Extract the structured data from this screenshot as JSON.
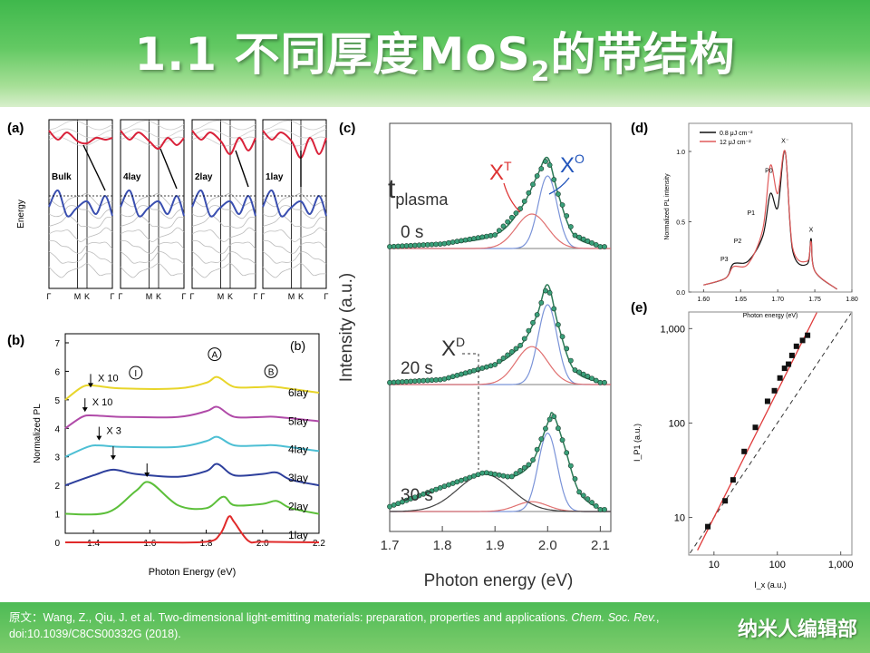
{
  "header": {
    "title_main": "1.1 不同厚度MoS",
    "title_sub": "2",
    "title_tail": "的带结构"
  },
  "panel_a": {
    "label": "(a)",
    "ylabel": "Energy",
    "layers": [
      "Bulk",
      "4lay",
      "2lay",
      "1lay"
    ],
    "kpoints": [
      "Γ",
      "M",
      "K",
      "Γ"
    ]
  },
  "panel_b": {
    "label": "(b)",
    "inner_label": "(b)",
    "ylabel": "Normalized PL",
    "xlabel": "Photon Energy (eV)",
    "yticks": [
      "0",
      "1",
      "2",
      "3",
      "4",
      "5",
      "6",
      "7"
    ],
    "xticks": [
      "1.4",
      "1.6",
      "1.8",
      "2.0",
      "2.2"
    ],
    "series": [
      "1lay",
      "2lay",
      "3lay",
      "4lay",
      "5lay",
      "6lay"
    ],
    "multipliers": [
      "X 10",
      "X 10",
      "X 3"
    ],
    "circle_I": "I",
    "circle_A": "A",
    "circle_B": "B"
  },
  "panel_c": {
    "label": "(c)",
    "t_label": "t",
    "t_sub": "plasma",
    "times": [
      "0 s",
      "20 s",
      "30 s"
    ],
    "ylabel": "Intensity (a.u.)",
    "xlabel": "Photon energy (eV)",
    "xticks": [
      "1.7",
      "1.8",
      "1.9",
      "2.0",
      "2.1"
    ],
    "xt_label": "X",
    "xt_sup": "T",
    "xo_label": "X",
    "xo_sup": "O",
    "xd_label": "X",
    "xd_sup": "D"
  },
  "panel_d": {
    "label": "(d)",
    "legend": [
      "0.8 μJ cm⁻²",
      "12 μJ cm⁻²"
    ],
    "ylabel": "Normalized PL intensity",
    "xlabel": "Photon energy (eV)",
    "xticks": [
      "1.60",
      "1.65",
      "1.70",
      "1.75",
      "1.80"
    ],
    "yticks": [
      "0.0",
      "0.5",
      "1.0"
    ],
    "peaks": [
      "P3",
      "P2",
      "P1",
      "P0",
      "X⁻",
      "X"
    ]
  },
  "panel_e": {
    "label": "(e)",
    "ylabel": "I_P1 (a.u.)",
    "xlabel": "I_x (a.u.)",
    "yticks": [
      "1,000",
      "100",
      "10"
    ],
    "xticks": [
      "10",
      "100",
      "1,000"
    ]
  },
  "chart_data": [
    {
      "type": "line",
      "title": "",
      "xlabel": "Photon Energy (eV)",
      "ylabel": "Normalized PL",
      "xlim": [
        1.3,
        2.2
      ],
      "ylim": [
        0,
        7
      ],
      "series": [
        {
          "name": "1lay",
          "offset": 0,
          "x": [
            1.3,
            1.6,
            1.8,
            1.85,
            1.88,
            1.9,
            1.95,
            2.0,
            2.2
          ],
          "values": [
            0,
            0,
            0.02,
            0.3,
            0.9,
            0.7,
            0.05,
            0.02,
            0
          ]
        },
        {
          "name": "2lay",
          "offset": 1,
          "x": [
            1.3,
            1.45,
            1.55,
            1.6,
            1.7,
            1.8,
            1.86,
            1.9,
            2.0,
            2.05,
            2.1,
            2.2
          ],
          "values": [
            0,
            0.05,
            0.8,
            1.1,
            0.3,
            0.2,
            0.6,
            0.3,
            0.35,
            0.45,
            0.2,
            0
          ]
        },
        {
          "name": "3lay",
          "offset": 2,
          "x": [
            1.3,
            1.4,
            1.47,
            1.55,
            1.7,
            1.8,
            1.84,
            1.9,
            2.0,
            2.05,
            2.1,
            2.2
          ],
          "values": [
            0,
            0.35,
            0.55,
            0.4,
            0.3,
            0.5,
            0.75,
            0.35,
            0.4,
            0.45,
            0.2,
            0
          ]
        },
        {
          "name": "4lay",
          "offset": 3,
          "x": [
            1.3,
            1.38,
            1.42,
            1.5,
            1.7,
            1.8,
            1.84,
            1.9,
            2.0,
            2.05,
            2.2
          ],
          "values": [
            0,
            0.35,
            0.4,
            0.35,
            0.35,
            0.55,
            0.7,
            0.4,
            0.4,
            0.4,
            0.2
          ]
        },
        {
          "name": "5lay",
          "offset": 4,
          "x": [
            1.3,
            1.36,
            1.4,
            1.5,
            1.7,
            1.8,
            1.84,
            1.9,
            2.0,
            2.05,
            2.2
          ],
          "values": [
            0,
            0.4,
            0.45,
            0.4,
            0.4,
            0.6,
            0.75,
            0.4,
            0.4,
            0.4,
            0.25
          ]
        },
        {
          "name": "6lay",
          "offset": 5,
          "x": [
            1.3,
            1.36,
            1.4,
            1.5,
            1.7,
            1.8,
            1.84,
            1.9,
            2.0,
            2.05,
            2.2
          ],
          "values": [
            0,
            0.45,
            0.5,
            0.4,
            0.4,
            0.6,
            0.8,
            0.45,
            0.45,
            0.45,
            0.25
          ]
        }
      ]
    },
    {
      "type": "scatter",
      "title": "",
      "xlabel": "Photon energy (eV)",
      "ylabel": "Intensity (a.u.)",
      "xlim": [
        1.7,
        2.12
      ],
      "series": [
        {
          "name": "0 s",
          "x": [
            1.7,
            1.8,
            1.9,
            1.95,
            1.98,
            2.0,
            2.02,
            2.05,
            2.1
          ],
          "values": [
            0.02,
            0.05,
            0.15,
            0.45,
            0.8,
            1.0,
            0.6,
            0.15,
            0.02
          ]
        },
        {
          "name": "20 s",
          "x": [
            1.7,
            1.8,
            1.9,
            1.95,
            1.98,
            2.0,
            2.02,
            2.05,
            2.1
          ],
          "values": [
            0.02,
            0.05,
            0.2,
            0.4,
            0.7,
            1.0,
            0.6,
            0.15,
            0.02
          ]
        },
        {
          "name": "30 s",
          "x": [
            1.7,
            1.8,
            1.88,
            1.93,
            1.97,
            2.0,
            2.01,
            2.03,
            2.06,
            2.1
          ],
          "values": [
            0.05,
            0.25,
            0.4,
            0.35,
            0.5,
            0.9,
            1.0,
            0.7,
            0.2,
            0.02
          ]
        }
      ]
    },
    {
      "type": "line",
      "title": "",
      "xlabel": "Photon energy (eV)",
      "ylabel": "Normalized PL intensity",
      "xlim": [
        1.58,
        1.8
      ],
      "ylim": [
        0,
        1.2
      ],
      "series": [
        {
          "name": "0.8 μJ cm⁻²",
          "x": [
            1.6,
            1.63,
            1.64,
            1.66,
            1.68,
            1.69,
            1.7,
            1.71,
            1.72,
            1.74,
            1.745,
            1.75,
            1.78
          ],
          "values": [
            0.05,
            0.1,
            0.2,
            0.22,
            0.4,
            0.7,
            0.6,
            1.0,
            0.3,
            0.2,
            0.38,
            0.15,
            0.02
          ]
        },
        {
          "name": "12 μJ cm⁻²",
          "x": [
            1.6,
            1.63,
            1.64,
            1.66,
            1.68,
            1.69,
            1.7,
            1.71,
            1.72,
            1.74,
            1.745,
            1.75,
            1.78
          ],
          "values": [
            0.05,
            0.1,
            0.18,
            0.2,
            0.45,
            0.9,
            0.7,
            1.0,
            0.32,
            0.22,
            0.36,
            0.15,
            0.02
          ]
        }
      ]
    },
    {
      "type": "scatter",
      "title": "",
      "xlabel": "I_x (a.u.)",
      "ylabel": "I_P1 (a.u.)",
      "log_scale": true,
      "xlim": [
        4,
        1500
      ],
      "ylim": [
        4,
        1500
      ],
      "series": [
        {
          "name": "data",
          "x": [
            8,
            15,
            20,
            30,
            45,
            70,
            90,
            110,
            130,
            150,
            170,
            200,
            250,
            300
          ],
          "values": [
            8,
            15,
            25,
            50,
            90,
            170,
            220,
            300,
            380,
            420,
            520,
            650,
            750,
            850
          ]
        }
      ]
    }
  ]
}
